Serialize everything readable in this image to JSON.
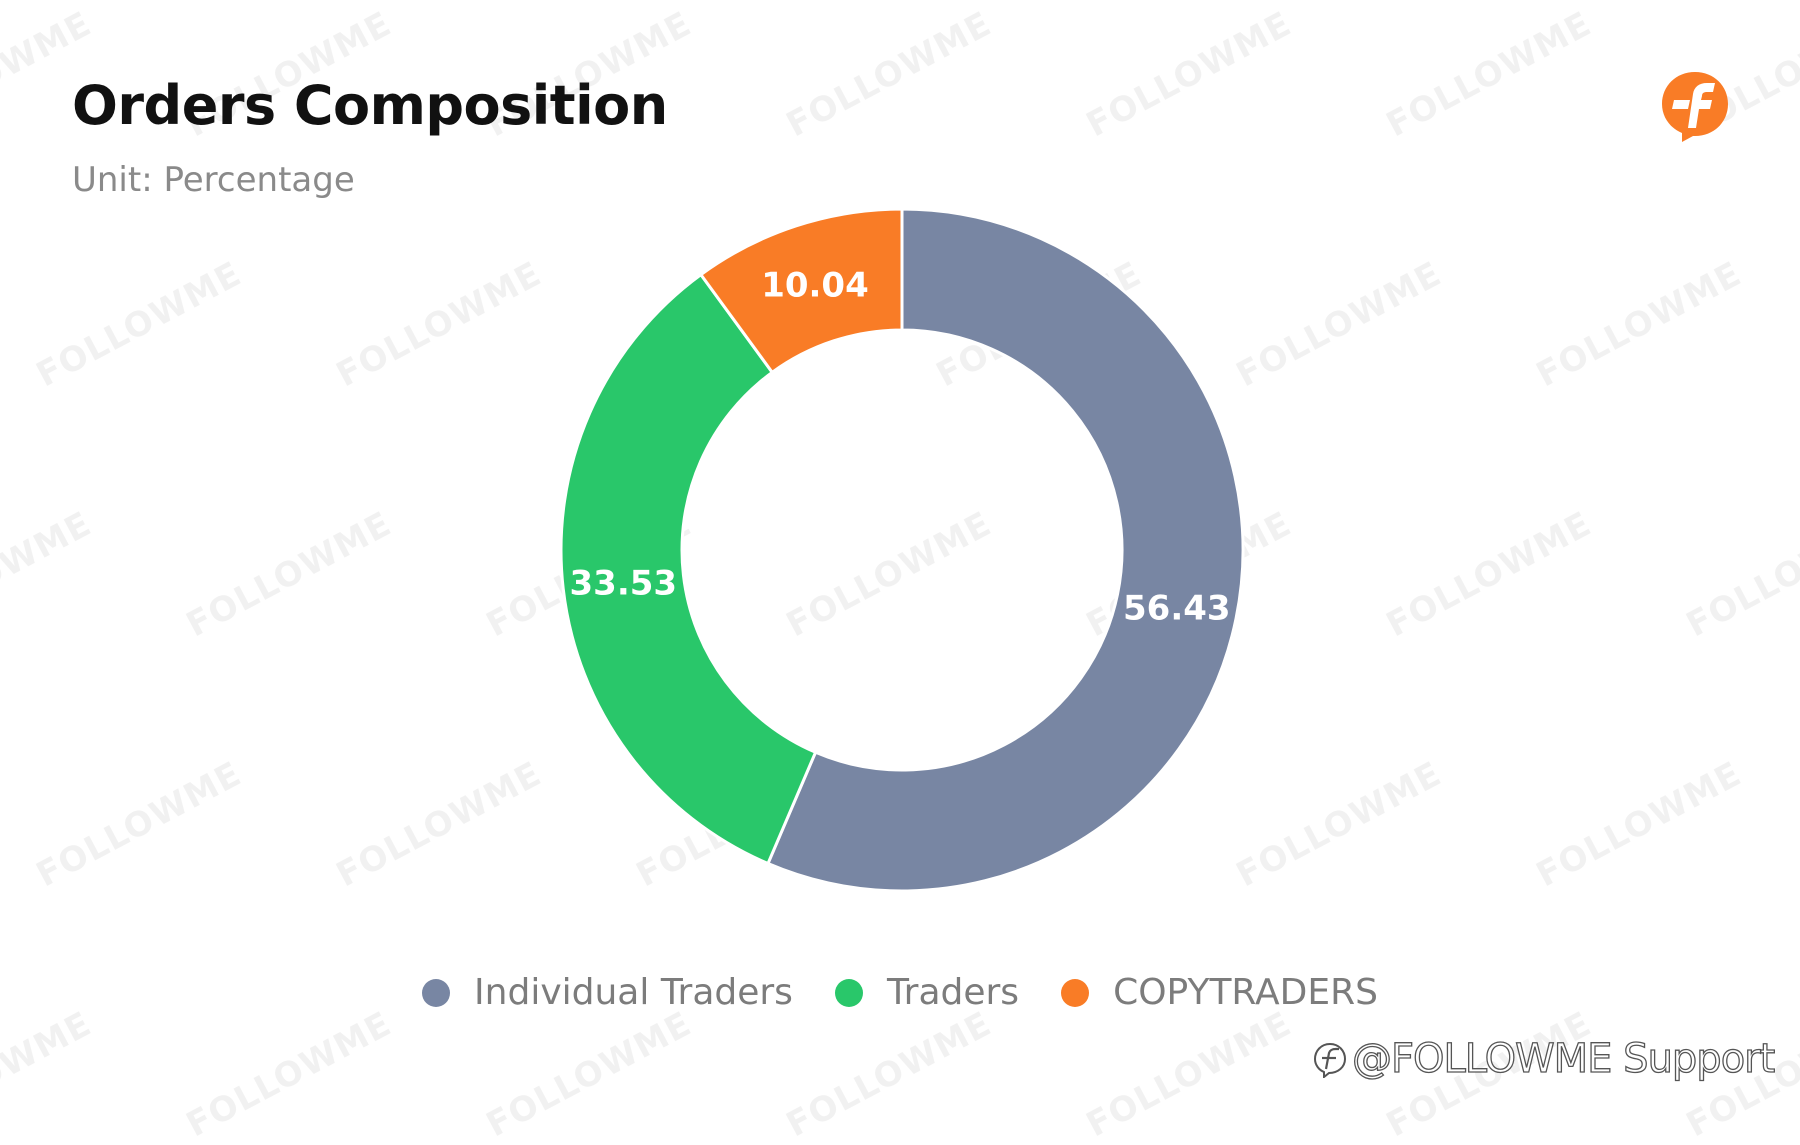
{
  "title": "Orders Composition",
  "subtitle": "Unit: Percentage",
  "logo_icon": "followme-f-logo-icon",
  "watermark": "FOLLOWME",
  "footer": "@FOLLOWME Support",
  "colors": {
    "individual": "#7886a3",
    "traders": "#29c76a",
    "copytraders": "#f97c26",
    "logo": "#f97c26"
  },
  "chart_data": {
    "type": "pie",
    "title": "Orders Composition",
    "subtitle": "Unit: Percentage",
    "donut": true,
    "legend_position": "bottom",
    "categories": [
      "Individual Traders",
      "Traders",
      "COPYTRADERS"
    ],
    "values": [
      56.43,
      33.53,
      10.04
    ],
    "labels": [
      "56.43",
      "33.53",
      "10.04"
    ],
    "colors": [
      "#7886a3",
      "#29c76a",
      "#f97c26"
    ]
  }
}
